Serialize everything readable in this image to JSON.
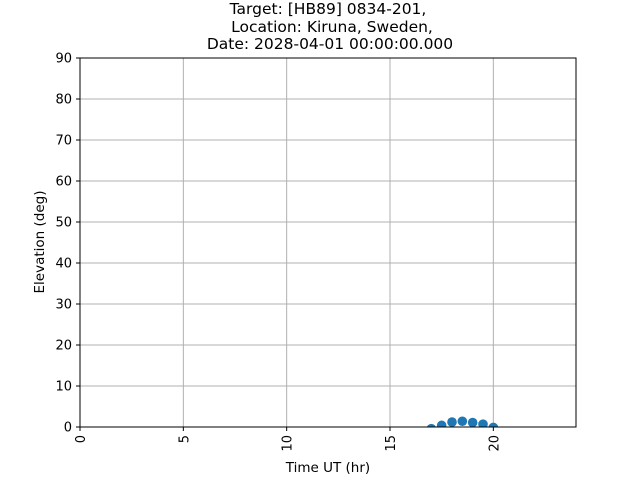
{
  "chart_data": {
    "type": "scatter",
    "title": [
      "Target: [HB89] 0834-201,",
      "Location: Kiruna, Sweden,",
      "Date: 2028-04-01 00:00:00.000"
    ],
    "xlabel": "Time UT (hr)",
    "ylabel": "Elevation (deg)",
    "xlim": [
      0,
      24
    ],
    "ylim": [
      0,
      90
    ],
    "xticks": [
      0,
      5,
      10,
      15,
      20
    ],
    "yticks": [
      0,
      10,
      20,
      30,
      40,
      50,
      60,
      70,
      80,
      90
    ],
    "grid": true,
    "marker_color": "#1f77b4",
    "x": [
      17.0,
      17.5,
      18.0,
      18.5,
      19.0,
      19.5,
      20.0
    ],
    "y": [
      -0.4,
      0.4,
      1.2,
      1.4,
      1.1,
      0.7,
      -0.1
    ]
  }
}
